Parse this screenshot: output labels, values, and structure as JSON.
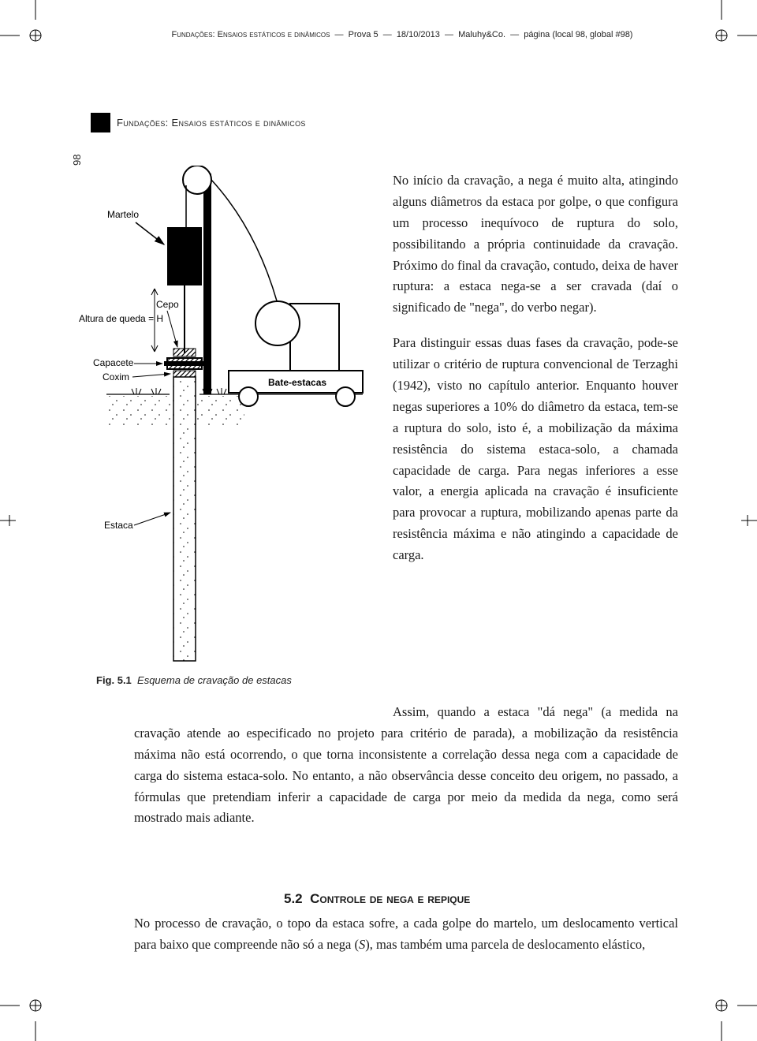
{
  "header": {
    "title_sc": "Fundações: Ensaios estáticos e dinâmicos",
    "proof": "Prova 5",
    "date": "18/10/2013",
    "publisher": "Maluhy&Co.",
    "page_info": "página (local 98, global #98)"
  },
  "running_head": "Fundações: Ensaios estáticos e dinâmicos",
  "page_number": "98",
  "figure": {
    "caption_label": "Fig. 5.1",
    "caption_text": "Esquema de cravação de estacas",
    "labels": {
      "martelo": "Martelo",
      "cepo": "Cepo",
      "altura": "Altura de queda = H",
      "capacete": "Capacete",
      "coxim": "Coxim",
      "bate_estacas": "Bate-estacas",
      "estaca": "Estaca"
    },
    "colors": {
      "stroke": "#000000",
      "fill_black": "#000000",
      "fill_white": "#ffffff",
      "hatch": "#000000"
    }
  },
  "paragraphs": {
    "p1": "No início da cravação, a nega é muito alta, atingindo alguns diâmetros da estaca por golpe, o que configura um processo inequívoco de ruptura do solo, possibilitando a própria continuidade da cravação. Próximo do final da cravação, contudo, deixa de haver ruptura: a estaca nega-se a ser cravada (daí o significado de \"nega\", do verbo negar).",
    "p2": "Para distinguir essas duas fases da cravação, pode-se utilizar o critério de ruptura convencional de Terzaghi (1942), visto no capítulo anterior. Enquanto houver negas superiores a 10% do diâmetro da estaca, tem-se a ruptura do solo, isto é, a mobilização da máxima resistência do sistema estaca-solo, a chamada capacidade de carga. Para negas inferiores a esse valor, a energia aplicada na cravação é insuficiente para provocar a ruptura, mobilizando apenas parte da resistência máxima e não atingindo a capacidade de carga.",
    "p3": "Assim, quando a estaca \"dá nega\" (a medida na cravação atende ao especificado no projeto para critério de parada), a mobilização da resistência máxima não está ocorrendo, o que torna inconsistente a correlação dessa nega com a capacidade de carga do sistema estaca-solo. No entanto, a não observância desse conceito deu origem, no passado, a fórmulas que pretendiam inferir a capacidade de carga por meio da medida da nega, como será mostrado mais adiante."
  },
  "section": {
    "number": "5.2",
    "title": "Controle de nega e repique",
    "body_html": "No processo de cravação, o topo da estaca sofre, a cada golpe do martelo, um deslocamento vertical para baixo que compreende não só a nega (<i>S</i>), mas também uma parcela de deslocamento elástico,"
  }
}
